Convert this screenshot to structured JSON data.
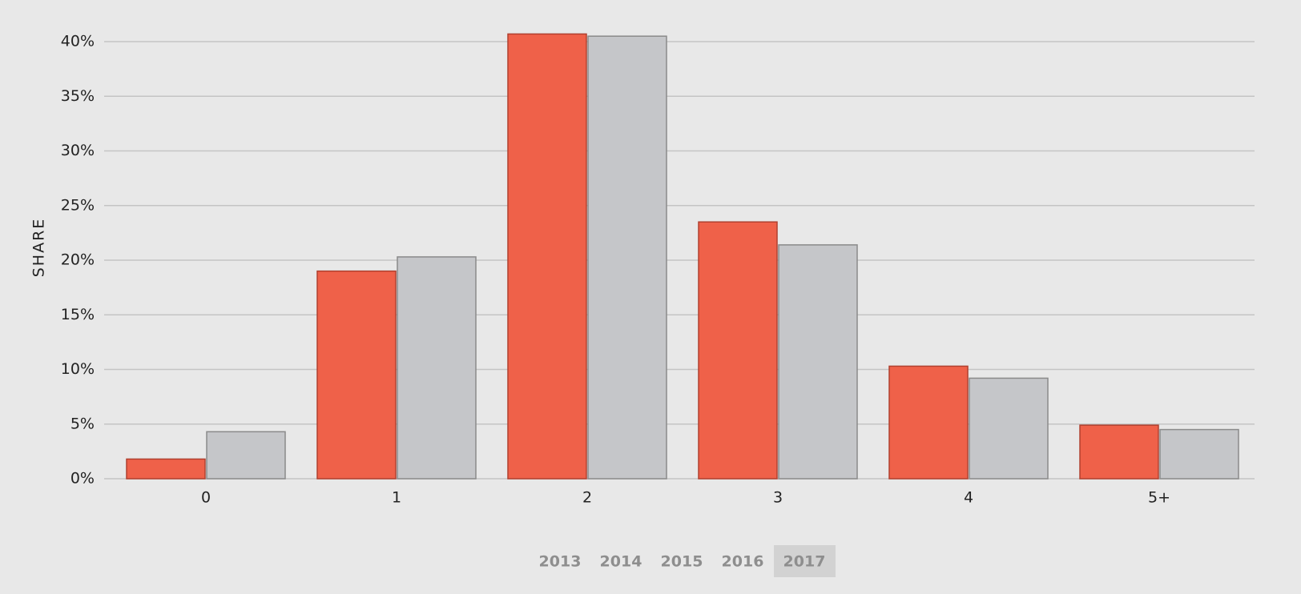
{
  "chart_data": {
    "type": "bar",
    "y_label": "SHARE",
    "categories": [
      "0",
      "1",
      "2",
      "3",
      "4",
      "5+"
    ],
    "series": [
      {
        "color": "#ef6149",
        "values": [
          1.8,
          19.0,
          40.7,
          23.5,
          10.3,
          4.9
        ]
      },
      {
        "color": "#c5c6c9",
        "values": [
          4.3,
          20.3,
          40.5,
          21.4,
          9.2,
          4.5
        ]
      }
    ],
    "ylim": [
      0,
      40
    ],
    "yticks": [
      {
        "value": 0,
        "label": "0%"
      },
      {
        "value": 5,
        "label": "5%"
      },
      {
        "value": 10,
        "label": "10%"
      },
      {
        "value": 15,
        "label": "15%"
      },
      {
        "value": 20,
        "label": "20%"
      },
      {
        "value": 25,
        "label": "25%"
      },
      {
        "value": 30,
        "label": "30%"
      },
      {
        "value": 35,
        "label": "35%"
      },
      {
        "value": 40,
        "label": "40%"
      }
    ],
    "grid": true,
    "year_buttons": [
      "2013",
      "2014",
      "2015",
      "2016",
      "2017"
    ],
    "selected_year": "2017"
  }
}
